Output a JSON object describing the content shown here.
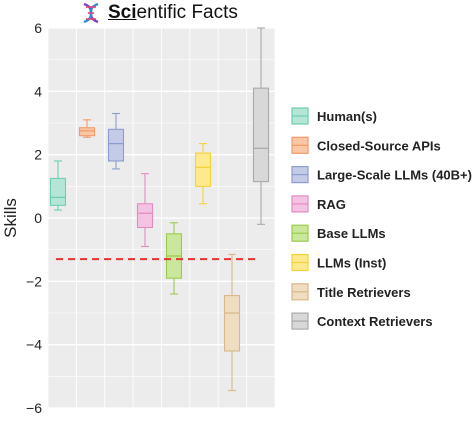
{
  "title": {
    "prefix": "Sci",
    "rest": "entific Facts",
    "icon": "dna-icon"
  },
  "chart_data": {
    "type": "box",
    "title": "Scientific Facts",
    "xlabel": "",
    "ylabel": "Skills",
    "ylim": [
      -6,
      6
    ],
    "yticks": [
      "6",
      "4",
      "2",
      "0",
      "−2",
      "−4",
      "−6"
    ],
    "grid": true,
    "legend_position": "right",
    "reference_line": {
      "y": -1.3,
      "color": "#e8312f",
      "style": "dashed"
    },
    "series": [
      {
        "name": "Human(s)",
        "fill": "#b5e5d6",
        "stroke": "#6ecfb0",
        "whisker_low": 0.25,
        "q1": 0.4,
        "median": 0.65,
        "q3": 1.25,
        "whisker_high": 1.8
      },
      {
        "name": "Closed-Source APIs",
        "fill": "#fbc7a6",
        "stroke": "#f29a68",
        "whisker_low": 2.55,
        "q1": 2.6,
        "median": 2.75,
        "q3": 2.85,
        "whisker_high": 3.1
      },
      {
        "name": "Large-Scale LLMs (40B+)",
        "fill": "#c3cbe6",
        "stroke": "#8e9dcf",
        "whisker_low": 1.55,
        "q1": 1.8,
        "median": 2.35,
        "q3": 2.8,
        "whisker_high": 3.3
      },
      {
        "name": "RAG",
        "fill": "#f4c3e1",
        "stroke": "#e48cc2",
        "whisker_low": -0.9,
        "q1": -0.3,
        "median": 0.15,
        "q3": 0.45,
        "whisker_high": 1.4
      },
      {
        "name": "Base LLMs",
        "fill": "#c9e89b",
        "stroke": "#9ccc4f",
        "whisker_low": -2.4,
        "q1": -1.9,
        "median": -1.2,
        "q3": -0.5,
        "whisker_high": -0.15
      },
      {
        "name": "LLMs (Inst)",
        "fill": "#fde98e",
        "stroke": "#f4d338",
        "whisker_low": 0.45,
        "q1": 1.0,
        "median": 1.6,
        "q3": 2.05,
        "whisker_high": 2.35
      },
      {
        "name": "Title Retrievers",
        "fill": "#f0dcc0",
        "stroke": "#d9b98a",
        "whisker_low": -5.45,
        "q1": -4.2,
        "median": -3.0,
        "q3": -2.45,
        "whisker_high": -1.15
      },
      {
        "name": "Context Retrievers",
        "fill": "#d8d8d8",
        "stroke": "#aaaaaa",
        "whisker_low": -0.2,
        "q1": 1.15,
        "median": 2.2,
        "q3": 4.1,
        "whisker_high": 6.0
      }
    ]
  }
}
